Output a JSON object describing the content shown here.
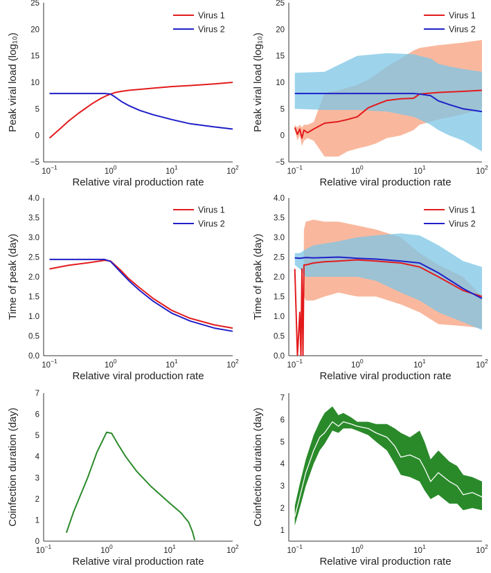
{
  "chart_data": [
    {
      "type": "line",
      "xlabel": "Relative viral production rate",
      "ylabel": "Peak viral load (log₁₀)",
      "xscale": "log",
      "xlim": [
        0.08,
        100
      ],
      "ylim": [
        -5,
        25
      ],
      "yticks": [
        "−5",
        "0",
        "5",
        "10",
        "15",
        "20",
        "25"
      ],
      "legend_position": "top-right",
      "series": [
        {
          "name": "Virus 1",
          "color": "#e31a1c",
          "x": [
            0.1,
            0.15,
            0.2,
            0.3,
            0.5,
            0.7,
            0.9,
            1.0,
            1.2,
            1.5,
            2,
            5,
            10,
            20,
            50,
            100
          ],
          "y": [
            -0.5,
            1.3,
            2.6,
            4.2,
            6.0,
            7.0,
            7.6,
            7.8,
            8.1,
            8.3,
            8.5,
            8.9,
            9.2,
            9.4,
            9.7,
            10.0
          ]
        },
        {
          "name": "Virus 2",
          "color": "#1f1fc8",
          "x": [
            0.1,
            0.5,
            0.8,
            1.0,
            1.2,
            1.5,
            2,
            3,
            5,
            10,
            20,
            50,
            100
          ],
          "y": [
            7.9,
            7.9,
            7.9,
            7.8,
            7.2,
            6.4,
            5.6,
            4.7,
            3.9,
            3.0,
            2.2,
            1.6,
            1.2
          ]
        }
      ]
    },
    {
      "type": "line",
      "xlabel": "Relative viral production rate",
      "ylabel": "Peak viral load (log₁₀)",
      "xscale": "log",
      "xlim": [
        0.08,
        100
      ],
      "ylim": [
        -5,
        25
      ],
      "yticks": [
        "−5",
        "0",
        "5",
        "10",
        "15",
        "20",
        "25"
      ],
      "legend_position": "top-right",
      "series": [
        {
          "name": "Virus 1",
          "color": "#e31a1c",
          "x": [
            0.1,
            0.11,
            0.12,
            0.13,
            0.14,
            0.16,
            0.2,
            0.3,
            0.5,
            0.7,
            1,
            1.5,
            2,
            3,
            5,
            8,
            10,
            20,
            50,
            100
          ],
          "y": [
            1.5,
            0.2,
            1.2,
            -0.5,
            1.0,
            0.5,
            1.2,
            2.3,
            2.6,
            3.0,
            3.5,
            5.2,
            5.8,
            6.6,
            6.9,
            7.0,
            7.8,
            8.1,
            8.3,
            8.5
          ],
          "lower": [
            1.0,
            -1.0,
            0.0,
            -2.0,
            -1.0,
            -0.5,
            -1.0,
            -4.0,
            -4.0,
            -3.0,
            -2.5,
            -2.0,
            -1.5,
            -0.5,
            0.0,
            1.0,
            2.0,
            3.0,
            4.0,
            5.0
          ],
          "upper": [
            2.0,
            1.5,
            2.0,
            1.5,
            2.0,
            2.0,
            2.5,
            8.0,
            8.5,
            9.0,
            9.5,
            10.5,
            11.5,
            13.0,
            14.5,
            16.0,
            16.5,
            17.0,
            17.5,
            18.0
          ]
        },
        {
          "name": "Virus 2",
          "color": "#1f1fc8",
          "x": [
            0.1,
            0.3,
            1,
            3,
            8,
            10,
            15,
            20,
            30,
            50,
            100
          ],
          "y": [
            7.9,
            7.9,
            7.9,
            7.9,
            7.9,
            7.8,
            7.5,
            6.5,
            5.8,
            5.0,
            4.5
          ],
          "lower": [
            5.0,
            4.8,
            4.8,
            4.5,
            3.5,
            3.0,
            2.0,
            1.0,
            0.0,
            -1.0,
            -3.0
          ],
          "upper": [
            11.8,
            12.0,
            15.0,
            15.5,
            15.3,
            15.0,
            14.5,
            13.5,
            13.0,
            12.5,
            12.0
          ]
        }
      ]
    },
    {
      "type": "line",
      "xlabel": "Relative viral production rate",
      "ylabel": "Time of peak (day)",
      "xscale": "log",
      "xlim": [
        0.08,
        100
      ],
      "ylim": [
        0,
        4
      ],
      "yticks": [
        "0.0",
        "0.5",
        "1.0",
        "1.5",
        "2.0",
        "2.5",
        "3.0",
        "3.5",
        "4.0"
      ],
      "legend_position": "top-right",
      "series": [
        {
          "name": "Virus 1",
          "color": "#e31a1c",
          "x": [
            0.1,
            0.2,
            0.5,
            0.8,
            1.0,
            1.5,
            2,
            3,
            5,
            10,
            20,
            50,
            100
          ],
          "y": [
            2.2,
            2.29,
            2.37,
            2.42,
            2.4,
            2.15,
            1.95,
            1.72,
            1.45,
            1.15,
            0.95,
            0.78,
            0.7
          ]
        },
        {
          "name": "Virus 2",
          "color": "#1f1fc8",
          "x": [
            0.1,
            0.5,
            0.8,
            1.0,
            1.5,
            2,
            3,
            5,
            10,
            20,
            50,
            100
          ],
          "y": [
            2.44,
            2.44,
            2.44,
            2.39,
            2.1,
            1.9,
            1.65,
            1.38,
            1.08,
            0.88,
            0.7,
            0.62
          ]
        }
      ]
    },
    {
      "type": "line",
      "xlabel": "Relative viral production rate",
      "ylabel": "Time of peak (day)",
      "xscale": "log",
      "xlim": [
        0.08,
        100
      ],
      "ylim": [
        0,
        4
      ],
      "yticks": [
        "0.0",
        "0.5",
        "1.0",
        "1.5",
        "2.0",
        "2.5",
        "3.0",
        "3.5",
        "4.0"
      ],
      "legend_position": "top-right",
      "series": [
        {
          "name": "Virus 1",
          "color": "#e31a1c",
          "x": [
            0.1,
            0.11,
            0.12,
            0.125,
            0.13,
            0.135,
            0.14,
            0.15,
            0.2,
            0.3,
            0.5,
            1,
            2,
            5,
            10,
            20,
            50,
            100
          ],
          "y": [
            2.2,
            0.0,
            1.1,
            0.0,
            2.2,
            0.0,
            2.3,
            2.3,
            2.35,
            2.38,
            2.4,
            2.43,
            2.4,
            2.35,
            2.25,
            2.0,
            1.65,
            1.5
          ],
          "lower": [
            2.2,
            0.0,
            1.1,
            0.0,
            2.2,
            0.0,
            1.5,
            1.4,
            1.4,
            1.5,
            1.6,
            1.5,
            1.5,
            1.3,
            1.1,
            0.8,
            0.75,
            0.7
          ],
          "upper": [
            2.2,
            0.0,
            1.1,
            0.0,
            2.2,
            0.0,
            3.2,
            3.4,
            3.45,
            3.4,
            3.4,
            3.3,
            3.2,
            3.0,
            2.6,
            2.3,
            2.0,
            1.5
          ]
        },
        {
          "name": "Virus 2",
          "color": "#1f1fc8",
          "x": [
            0.1,
            0.12,
            0.15,
            0.2,
            0.5,
            1,
            2,
            5,
            10,
            20,
            50,
            100
          ],
          "y": [
            2.48,
            2.47,
            2.49,
            2.48,
            2.5,
            2.47,
            2.45,
            2.4,
            2.35,
            2.1,
            1.7,
            1.45
          ],
          "lower": [
            2.3,
            2.2,
            2.0,
            2.0,
            2.0,
            2.0,
            1.9,
            1.6,
            1.4,
            1.1,
            0.85,
            0.65
          ],
          "upper": [
            2.6,
            2.6,
            2.7,
            2.8,
            2.9,
            3.0,
            3.05,
            3.1,
            3.05,
            2.8,
            2.4,
            2.25
          ]
        }
      ]
    },
    {
      "type": "line",
      "xlabel": "Relative viral production rate",
      "ylabel": "Coinfection duration (day)",
      "xscale": "log",
      "xlim": [
        0.1,
        100
      ],
      "ylim": [
        0,
        7
      ],
      "yticks": [
        "0",
        "1",
        "2",
        "3",
        "4",
        "5",
        "6",
        "7"
      ],
      "series": [
        {
          "color": "#2a8a2a",
          "x": [
            0.23,
            0.3,
            0.5,
            0.7,
            1.0,
            1.2,
            1.5,
            2,
            3,
            5,
            10,
            15,
            20,
            23,
            25
          ],
          "y": [
            0.4,
            1.4,
            3.0,
            4.2,
            5.15,
            5.1,
            4.6,
            4.0,
            3.3,
            2.6,
            1.8,
            1.35,
            0.9,
            0.45,
            0.05
          ]
        }
      ]
    },
    {
      "type": "line",
      "xlabel": "Relative viral production rate",
      "ylabel": "Coinfection duration (day)",
      "xscale": "log",
      "xlim": [
        0.08,
        100
      ],
      "ylim": [
        0.5,
        7.2
      ],
      "yticks": [
        "1",
        "2",
        "3",
        "4",
        "5",
        "6",
        "7"
      ],
      "series": [
        {
          "color": "#2a8a2a",
          "x": [
            0.1,
            0.12,
            0.15,
            0.2,
            0.25,
            0.3,
            0.4,
            0.5,
            0.6,
            0.8,
            1,
            1.5,
            2,
            3,
            4,
            5,
            7,
            10,
            12,
            15,
            20,
            30,
            40,
            50,
            70,
            100
          ],
          "y": [
            1.6,
            2.5,
            3.6,
            4.6,
            5.2,
            5.4,
            5.9,
            5.7,
            5.9,
            5.8,
            5.7,
            5.6,
            5.4,
            5.2,
            4.8,
            4.3,
            4.4,
            4.2,
            3.8,
            3.2,
            3.6,
            3.2,
            3.0,
            2.6,
            2.7,
            2.5
          ],
          "lower": [
            1.2,
            2.0,
            3.0,
            4.0,
            4.6,
            4.9,
            5.5,
            5.4,
            5.6,
            5.6,
            5.5,
            5.3,
            5.0,
            4.6,
            4.0,
            3.5,
            3.4,
            3.2,
            2.8,
            2.4,
            2.6,
            2.2,
            2.2,
            1.9,
            2.0,
            1.9
          ],
          "upper": [
            2.1,
            3.1,
            4.2,
            5.3,
            5.9,
            6.3,
            6.6,
            6.2,
            6.3,
            6.1,
            5.9,
            5.9,
            5.8,
            5.8,
            5.6,
            5.4,
            5.2,
            5.5,
            5.0,
            4.2,
            4.6,
            4.1,
            3.9,
            3.5,
            3.4,
            3.2
          ]
        }
      ]
    }
  ]
}
